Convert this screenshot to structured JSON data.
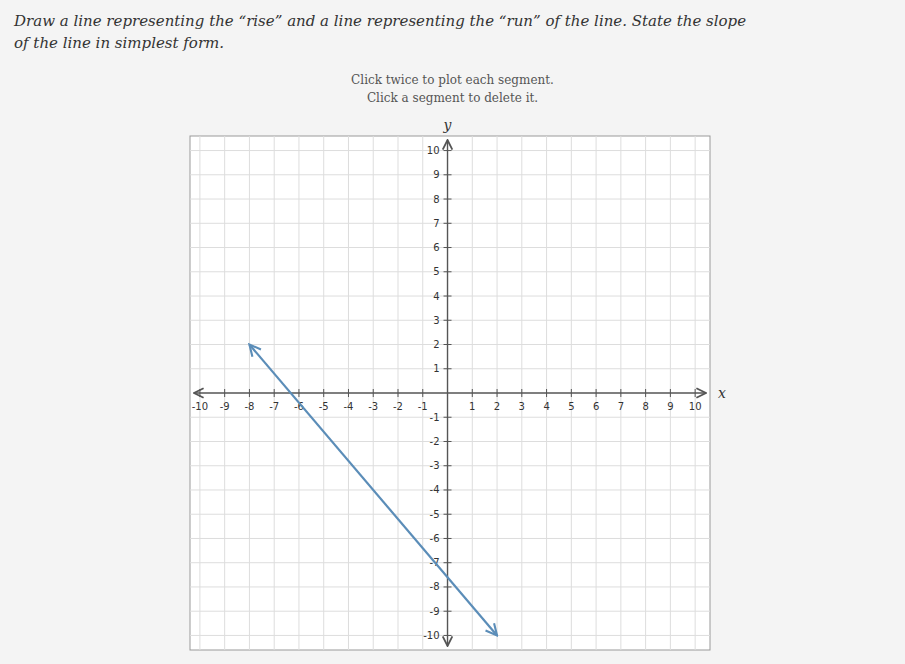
{
  "chart_data": {
    "type": "line",
    "title": [
      "Draw a line representing the “rise” and a line representing the “run” of the line. State the slope",
      "of the line in simplest form."
    ],
    "subtitle": [
      "Click twice to plot each segment.",
      "Click a segment to delete it."
    ],
    "x_label": "x",
    "y_label": "y",
    "x": [
      -8,
      2
    ],
    "values": [
      2,
      -10
    ],
    "color": "#5b8db8",
    "xlim": [
      -10.4,
      10.6
    ],
    "ylim": [
      -10.6,
      10.6
    ],
    "xticks": [
      -10,
      -9,
      -8,
      -7,
      -6,
      -5,
      -4,
      -3,
      -2,
      -1,
      1,
      2,
      3,
      4,
      5,
      6,
      7,
      8,
      9,
      10
    ],
    "yticks": [
      -10,
      -9,
      -8,
      -7,
      -6,
      -5,
      -4,
      -3,
      -2,
      -1,
      1,
      2,
      3,
      4,
      5,
      6,
      7,
      8,
      9,
      10
    ],
    "grid": true
  }
}
